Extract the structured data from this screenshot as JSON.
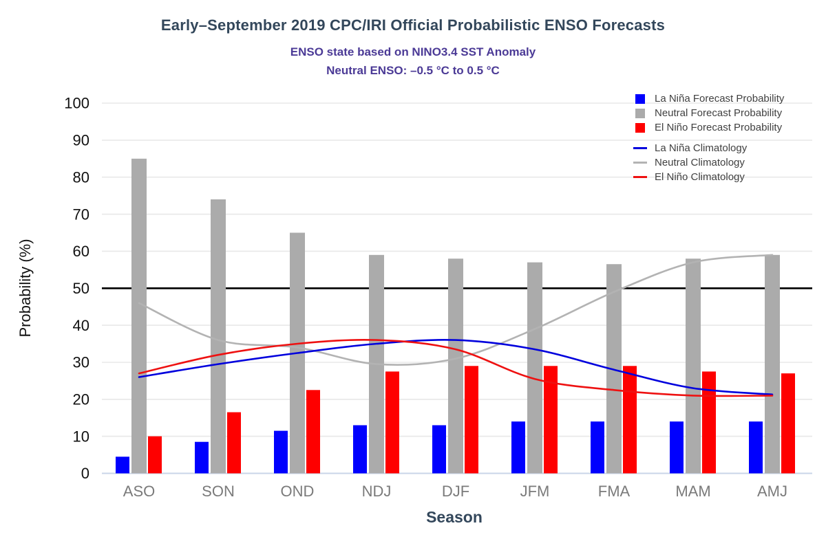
{
  "chart_data": {
    "type": "bar+line",
    "title": "Early–September 2019 CPC/IRI Official Probabilistic ENSO Forecasts",
    "subtitle1": "ENSO state based on NINO3.4 SST Anomaly",
    "subtitle2": "Neutral ENSO: –0.5 °C to 0.5 °C",
    "xlabel": "Season",
    "ylabel": "Probability (%)",
    "categories": [
      "ASO",
      "SON",
      "OND",
      "NDJ",
      "DJF",
      "JFM",
      "FMA",
      "MAM",
      "AMJ"
    ],
    "bar_series": [
      {
        "name": "La Niña Forecast Probability",
        "color": "#0000fe",
        "values": [
          4.5,
          8.5,
          11.5,
          13,
          13,
          14,
          14,
          14,
          14
        ]
      },
      {
        "name": "Neutral Forecast Probability",
        "color": "#ababab",
        "values": [
          85,
          74,
          65,
          59,
          58,
          57,
          56.5,
          58,
          59
        ]
      },
      {
        "name": "El Niño Forecast Probability",
        "color": "#fe0000",
        "values": [
          10,
          16.5,
          22.5,
          27.5,
          29,
          29,
          29,
          27.5,
          27
        ]
      }
    ],
    "line_series": [
      {
        "name": "La Niña Climatology",
        "color": "#0000dd",
        "values": [
          26,
          29.5,
          32.5,
          35,
          36,
          33.5,
          28,
          23,
          21.3
        ]
      },
      {
        "name": "Neutral Climatology",
        "color": "#b3b3b3",
        "values": [
          46,
          36,
          34,
          29.5,
          31,
          39,
          49,
          57,
          59
        ]
      },
      {
        "name": "El Niño Climatology",
        "color": "#ee1111",
        "values": [
          27,
          32,
          35,
          36,
          33.5,
          25.5,
          22.5,
          21,
          21
        ]
      }
    ],
    "ylim": [
      0,
      100
    ],
    "yticks": [
      0,
      10,
      20,
      30,
      40,
      50,
      60,
      70,
      80,
      90,
      100
    ],
    "reference_line": 50,
    "grid": true,
    "legend_position": "top-right",
    "colors": {
      "title": "#33475b",
      "subtitle": "#4b3a96",
      "y_tick_label": "#111111",
      "x_tick_label": "#7a7a7a",
      "axis_title_y": "#111111",
      "axis_title_x": "#33475b",
      "grid": "#e8e8e8",
      "baseline": "#c9d4e8",
      "reference": "#000000",
      "legend_text": "#404040"
    }
  }
}
